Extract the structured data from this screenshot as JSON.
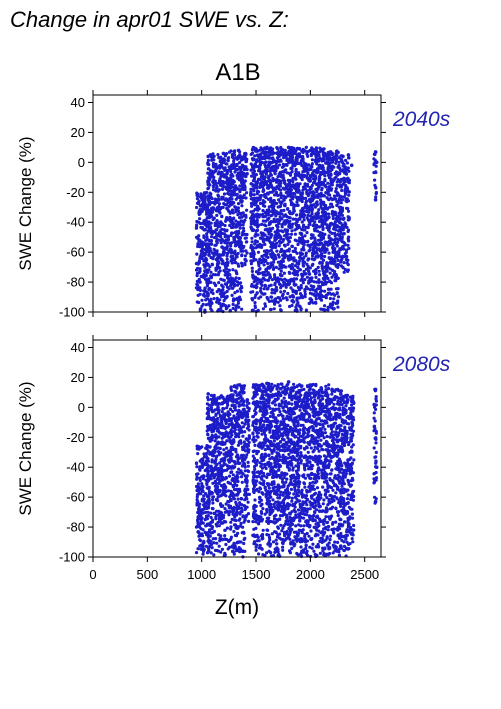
{
  "header": {
    "title": "Change in apr01 SWE vs. Z:",
    "scenario": "A1B"
  },
  "colors": {
    "points": "#1c1cc8",
    "period_label": "#2323b4",
    "axis": "#000000"
  },
  "chart_data": [
    {
      "type": "scatter",
      "panel_label": "2040s",
      "xlabel": "",
      "ylabel": "SWE Change (%)",
      "xlim": [
        0,
        2650
      ],
      "ylim": [
        -100,
        45
      ],
      "x_ticks": [
        0,
        500,
        1000,
        1500,
        2000,
        2500
      ],
      "y_ticks": [
        40,
        20,
        0,
        -20,
        -40,
        -60,
        -80,
        -100
      ],
      "show_x_tick_labels": false,
      "grid": false,
      "point_color": "#1c1cc8",
      "bands": [
        {
          "x_min": 950,
          "x_max": 1070,
          "y_min": -100,
          "y_max": -20
        },
        {
          "x_min": 1050,
          "x_max": 1250,
          "y_min": -100,
          "y_max": 6
        },
        {
          "x_min": 1250,
          "x_max": 1370,
          "y_min": -100,
          "y_max": 8
        },
        {
          "x_min": 1370,
          "x_max": 1420,
          "y_min": -70,
          "y_max": 6
        },
        {
          "x_min": 1450,
          "x_max": 2150,
          "y_min": -100,
          "y_max": 10
        },
        {
          "x_min": 2150,
          "x_max": 2260,
          "y_min": -100,
          "y_max": 8
        },
        {
          "x_min": 2260,
          "x_max": 2360,
          "y_min": -75,
          "y_max": 5
        },
        {
          "x_min": 2585,
          "x_max": 2610,
          "y_min": -25,
          "y_max": 7
        }
      ],
      "points": [
        [
          960,
          -22
        ],
        [
          970,
          -55
        ],
        [
          985,
          -80
        ],
        [
          990,
          -98
        ],
        [
          1005,
          -60
        ],
        [
          1030,
          -100
        ],
        [
          1060,
          4
        ],
        [
          1080,
          5
        ],
        [
          1110,
          -10
        ],
        [
          1200,
          6
        ],
        [
          1300,
          7
        ],
        [
          1340,
          8
        ],
        [
          1400,
          -65
        ],
        [
          1500,
          9
        ],
        [
          1600,
          10
        ],
        [
          1700,
          9
        ],
        [
          1800,
          10
        ],
        [
          1900,
          9
        ],
        [
          2000,
          8
        ],
        [
          2100,
          8
        ],
        [
          2200,
          6
        ],
        [
          2300,
          4
        ],
        [
          2350,
          5
        ],
        [
          2380,
          -2
        ],
        [
          2600,
          7
        ],
        [
          2600,
          -25
        ],
        [
          2610,
          0
        ]
      ]
    },
    {
      "type": "scatter",
      "panel_label": "2080s",
      "xlabel": "Z(m)",
      "ylabel": "SWE Change (%)",
      "xlim": [
        0,
        2650
      ],
      "ylim": [
        -100,
        45
      ],
      "x_ticks": [
        0,
        500,
        1000,
        1500,
        2000,
        2500
      ],
      "y_ticks": [
        40,
        20,
        0,
        -20,
        -40,
        -60,
        -80,
        -100
      ],
      "show_x_tick_labels": true,
      "grid": false,
      "point_color": "#1c1cc8",
      "bands": [
        {
          "x_min": 950,
          "x_max": 1070,
          "y_min": -100,
          "y_max": -25
        },
        {
          "x_min": 1050,
          "x_max": 1270,
          "y_min": -100,
          "y_max": 8
        },
        {
          "x_min": 1270,
          "x_max": 1400,
          "y_min": -100,
          "y_max": 15
        },
        {
          "x_min": 1400,
          "x_max": 1440,
          "y_min": -80,
          "y_max": 5
        },
        {
          "x_min": 1470,
          "x_max": 2170,
          "y_min": -100,
          "y_max": 16
        },
        {
          "x_min": 2170,
          "x_max": 2290,
          "y_min": -100,
          "y_max": 12
        },
        {
          "x_min": 2290,
          "x_max": 2400,
          "y_min": -100,
          "y_max": 8
        },
        {
          "x_min": 2585,
          "x_max": 2610,
          "y_min": -65,
          "y_max": 12
        }
      ],
      "points": [
        [
          960,
          -26
        ],
        [
          970,
          -55
        ],
        [
          985,
          -85
        ],
        [
          1005,
          -40
        ],
        [
          1060,
          9
        ],
        [
          1100,
          2
        ],
        [
          1150,
          0
        ],
        [
          1300,
          14
        ],
        [
          1350,
          15
        ],
        [
          1420,
          5
        ],
        [
          1500,
          15
        ],
        [
          1600,
          16
        ],
        [
          1700,
          14
        ],
        [
          1800,
          17
        ],
        [
          1900,
          15
        ],
        [
          2000,
          14
        ],
        [
          2100,
          13
        ],
        [
          2200,
          12
        ],
        [
          2300,
          7
        ],
        [
          2340,
          8
        ],
        [
          2380,
          4
        ],
        [
          2600,
          12
        ],
        [
          2600,
          -63
        ],
        [
          2610,
          -40
        ]
      ]
    }
  ]
}
